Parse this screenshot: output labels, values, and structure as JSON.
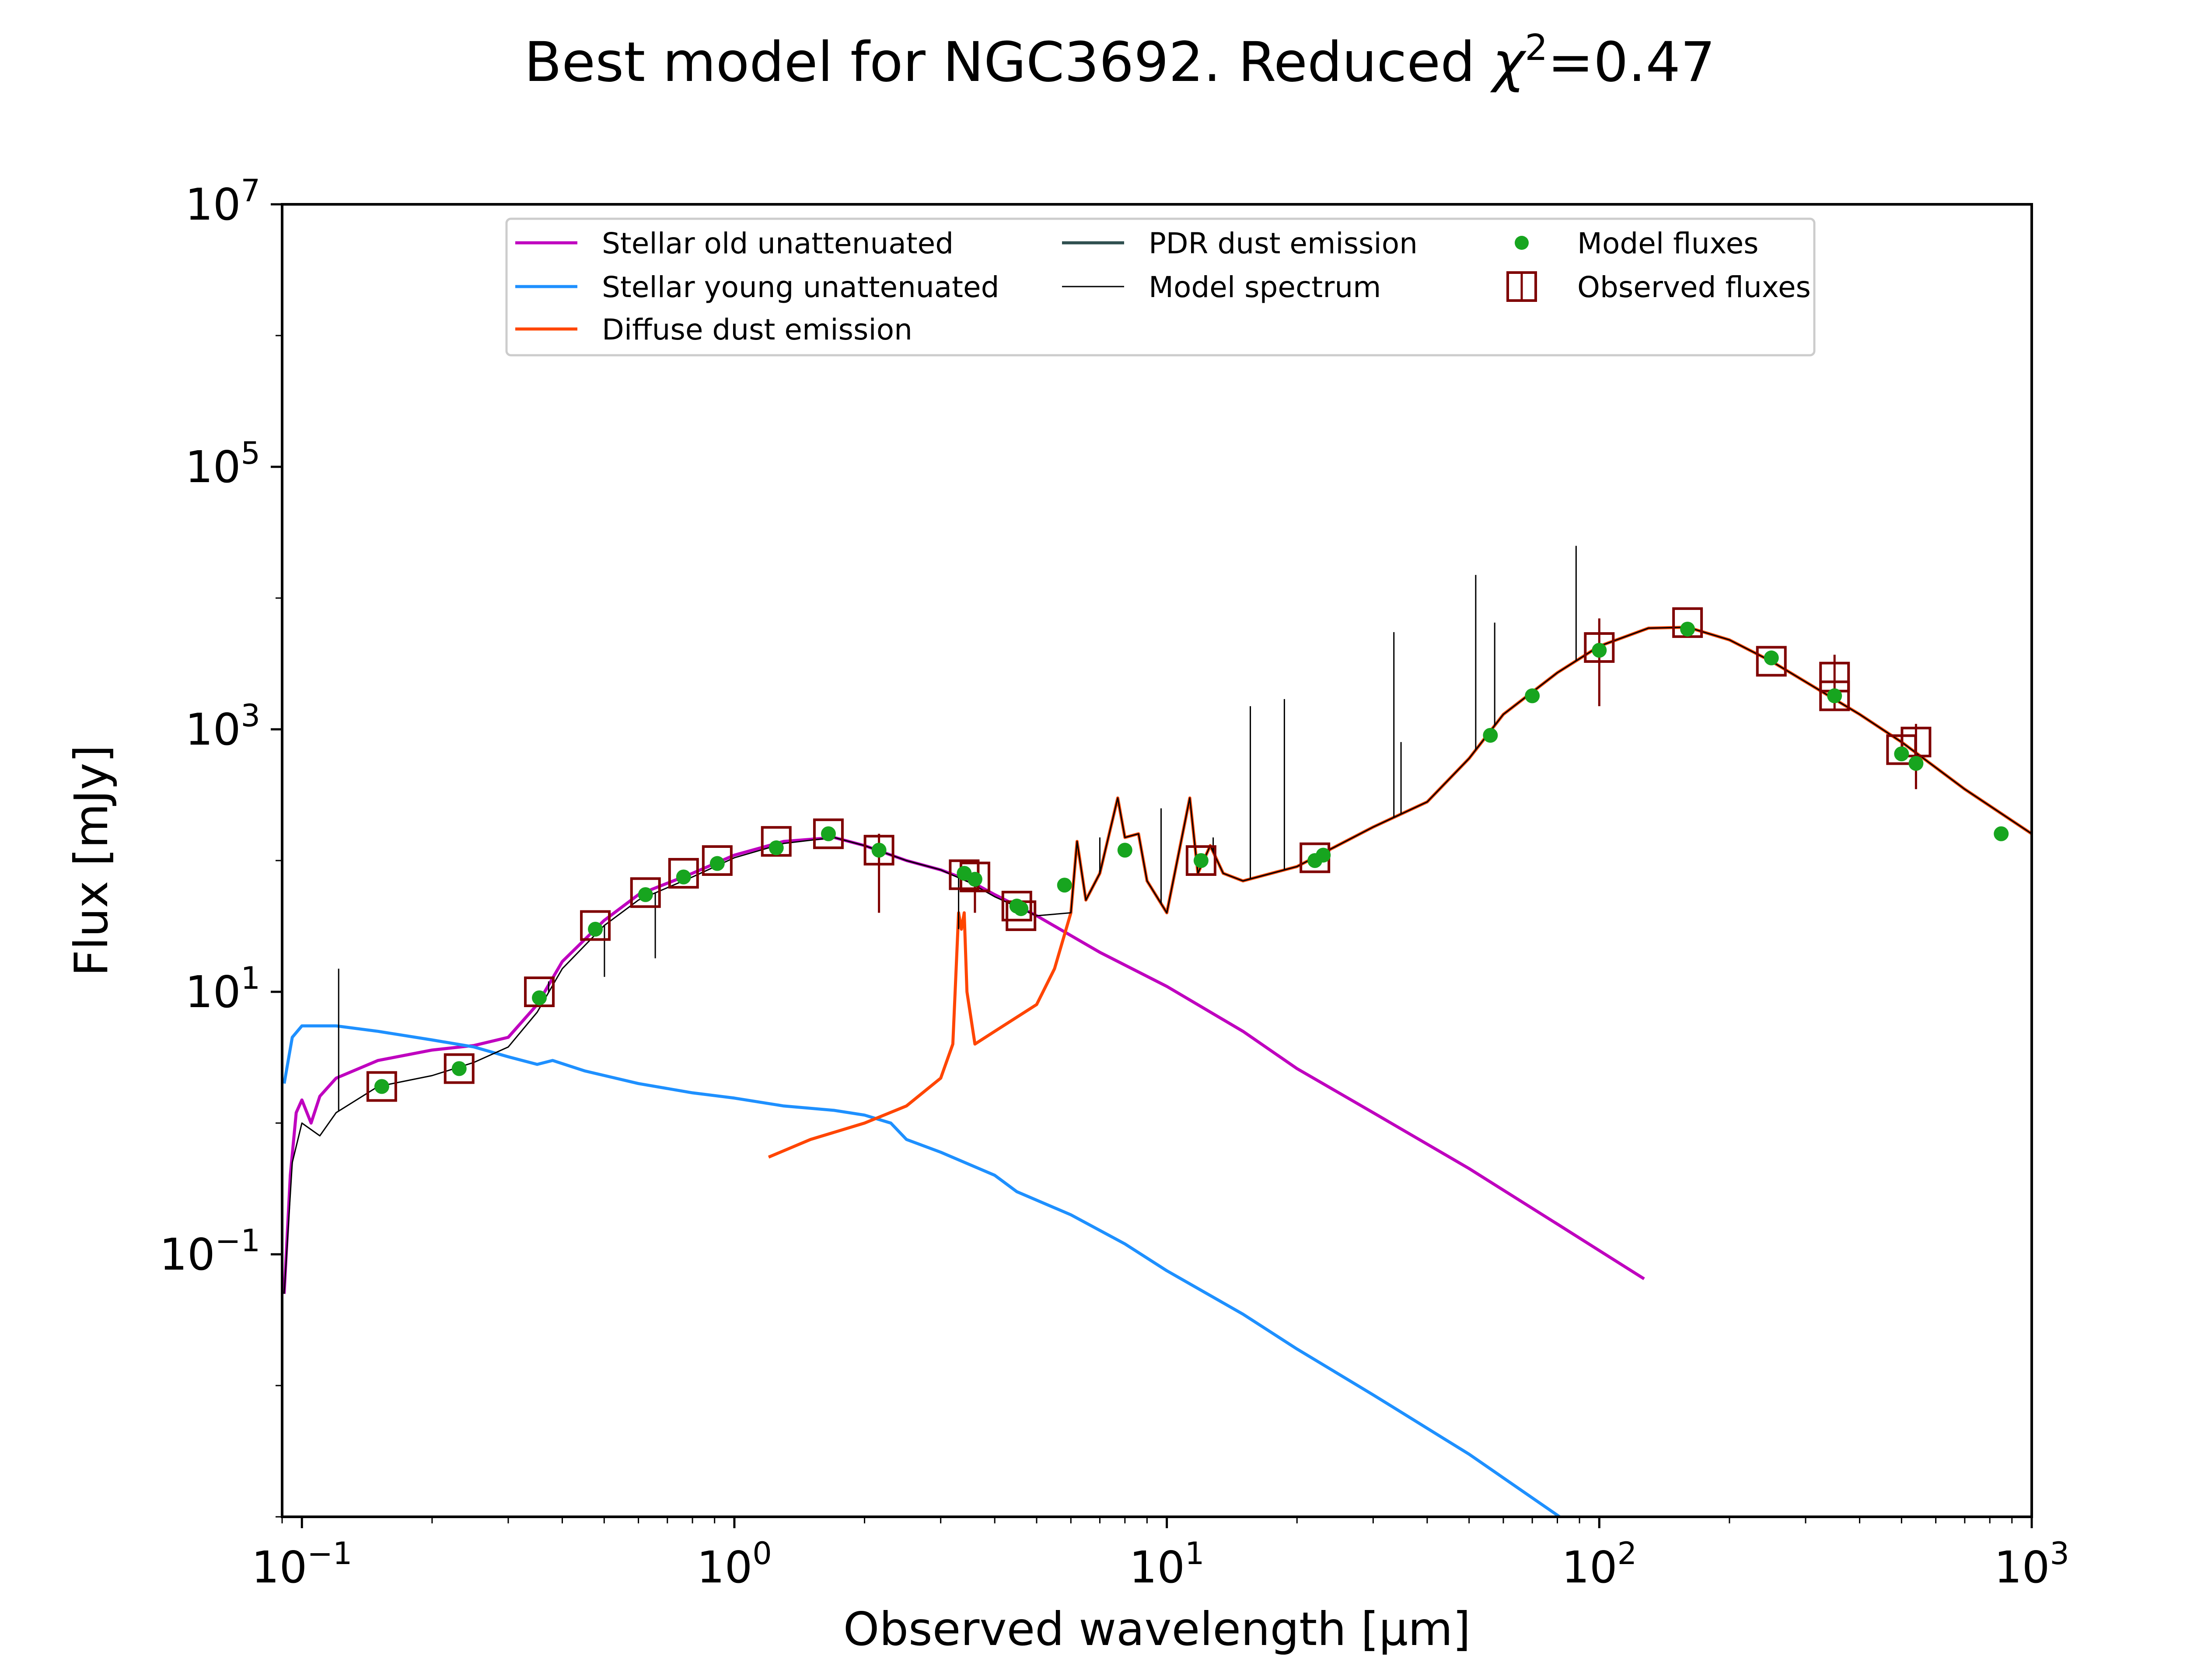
{
  "chart_data": {
    "type": "line",
    "title": {
      "main": "Best model for NGC3692. Reduced ",
      "chi": "χ",
      "exp": "2",
      "tail": "=0.47"
    },
    "xlabel": "Observed wavelength [μm]",
    "ylabel": "Flux [mJy]",
    "x_scale": "log",
    "y_scale": "log",
    "xlim": [
      0.09,
      1000
    ],
    "ylim": [
      0.001,
      10000000
    ],
    "x_ticks": [
      {
        "v": 0.1,
        "base": "10",
        "exp": "−1"
      },
      {
        "v": 1,
        "base": "10",
        "exp": "0"
      },
      {
        "v": 10,
        "base": "10",
        "exp": "1"
      },
      {
        "v": 100,
        "base": "10",
        "exp": "2"
      },
      {
        "v": 1000,
        "base": "10",
        "exp": "3"
      }
    ],
    "y_ticks": [
      {
        "v": 0.1,
        "base": "10",
        "exp": "−1"
      },
      {
        "v": 10,
        "base": "10",
        "exp": "1"
      },
      {
        "v": 1000,
        "base": "10",
        "exp": "3"
      },
      {
        "v": 100000,
        "base": "10",
        "exp": "5"
      },
      {
        "v": 10000000,
        "base": "10",
        "exp": "7"
      }
    ],
    "grid": false,
    "legend": {
      "placement": "upper center",
      "entries": [
        {
          "label": "Stellar old unattenuated",
          "kind": "line",
          "color": "#BF00BF"
        },
        {
          "label": "Stellar young unattenuated",
          "kind": "line",
          "color": "#1E90FF"
        },
        {
          "label": "Diffuse dust emission",
          "kind": "line",
          "color": "#FF4500"
        },
        {
          "label": "PDR dust emission",
          "kind": "line",
          "color": "#2F4F4F"
        },
        {
          "label": "Model spectrum",
          "kind": "thin",
          "color": "#000000"
        },
        {
          "label": "Model fluxes",
          "kind": "dot",
          "color": "#17A51F"
        },
        {
          "label": "Observed fluxes",
          "kind": "square",
          "color": "#7F0000"
        }
      ]
    },
    "series": [
      {
        "name": "Stellar old unattenuated",
        "color": "#BF00BF",
        "points": [
          [
            0.091,
            0.05
          ],
          [
            0.094,
            0.4
          ],
          [
            0.097,
            1.2
          ],
          [
            0.1,
            1.5
          ],
          [
            0.105,
            1.0
          ],
          [
            0.11,
            1.6
          ],
          [
            0.12,
            2.2
          ],
          [
            0.15,
            3.0
          ],
          [
            0.2,
            3.6
          ],
          [
            0.25,
            3.9
          ],
          [
            0.3,
            4.5
          ],
          [
            0.35,
            8
          ],
          [
            0.4,
            17
          ],
          [
            0.5,
            35
          ],
          [
            0.6,
            55
          ],
          [
            0.8,
            80
          ],
          [
            1.0,
            110
          ],
          [
            1.3,
            140
          ],
          [
            1.7,
            150
          ],
          [
            2.0,
            130
          ],
          [
            2.5,
            100
          ],
          [
            3.0,
            85
          ],
          [
            3.5,
            70
          ],
          [
            4.0,
            55
          ],
          [
            5.0,
            38
          ],
          [
            7.0,
            20
          ],
          [
            10.0,
            11
          ],
          [
            15.0,
            5.0
          ],
          [
            20.0,
            2.6
          ],
          [
            30.0,
            1.2
          ],
          [
            50.0,
            0.45
          ],
          [
            80.0,
            0.17
          ],
          [
            127.0,
            0.065
          ]
        ]
      },
      {
        "name": "Stellar young unattenuated",
        "color": "#1E90FF",
        "points": [
          [
            0.091,
            2
          ],
          [
            0.095,
            4.5
          ],
          [
            0.1,
            5.5
          ],
          [
            0.12,
            5.5
          ],
          [
            0.15,
            5.0
          ],
          [
            0.2,
            4.3
          ],
          [
            0.25,
            3.8
          ],
          [
            0.3,
            3.2
          ],
          [
            0.35,
            2.8
          ],
          [
            0.38,
            3.0
          ],
          [
            0.45,
            2.5
          ],
          [
            0.6,
            2.0
          ],
          [
            0.8,
            1.7
          ],
          [
            1.0,
            1.55
          ],
          [
            1.3,
            1.35
          ],
          [
            1.7,
            1.25
          ],
          [
            2.0,
            1.15
          ],
          [
            2.3,
            1.0
          ],
          [
            2.5,
            0.75
          ],
          [
            3.0,
            0.6
          ],
          [
            4.0,
            0.4
          ],
          [
            4.5,
            0.3
          ],
          [
            6.0,
            0.2
          ],
          [
            8.0,
            0.12
          ],
          [
            10.0,
            0.075
          ],
          [
            15.0,
            0.035
          ],
          [
            20.0,
            0.019
          ],
          [
            30.0,
            0.0085
          ],
          [
            50.0,
            0.003
          ],
          [
            81.0,
            0.001
          ]
        ]
      },
      {
        "name": "Diffuse dust emission",
        "color": "#FF4500",
        "points": [
          [
            1.2,
            0.55
          ],
          [
            1.5,
            0.75
          ],
          [
            2.0,
            1.0
          ],
          [
            2.5,
            1.35
          ],
          [
            3.0,
            2.2
          ],
          [
            3.2,
            4
          ],
          [
            3.3,
            40
          ],
          [
            3.35,
            30
          ],
          [
            3.4,
            40
          ],
          [
            3.45,
            10
          ],
          [
            3.6,
            4
          ],
          [
            4.0,
            5
          ],
          [
            5.0,
            8
          ],
          [
            5.5,
            15
          ],
          [
            6.0,
            40
          ],
          [
            6.2,
            140
          ],
          [
            6.5,
            50
          ],
          [
            7.0,
            80
          ],
          [
            7.7,
            300
          ],
          [
            8.0,
            150
          ],
          [
            8.6,
            160
          ],
          [
            9.0,
            70
          ],
          [
            10.0,
            40
          ],
          [
            11.3,
            300
          ],
          [
            11.8,
            80
          ],
          [
            12.6,
            130
          ],
          [
            13.5,
            80
          ],
          [
            15.0,
            70
          ],
          [
            20.0,
            90
          ],
          [
            30.0,
            180
          ],
          [
            40.0,
            280
          ],
          [
            50.0,
            600
          ],
          [
            60.0,
            1300
          ],
          [
            80.0,
            2700
          ],
          [
            100.0,
            4300
          ],
          [
            130.0,
            5900
          ],
          [
            160.0,
            6000
          ],
          [
            200.0,
            4800
          ],
          [
            250.0,
            3300
          ],
          [
            300.0,
            2300
          ],
          [
            400.0,
            1300
          ],
          [
            500.0,
            800
          ],
          [
            700.0,
            350
          ],
          [
            1000.0,
            160
          ]
        ]
      },
      {
        "name": "Model spectrum",
        "color": "#000000",
        "points": [
          [
            0.091,
            0.05
          ],
          [
            0.095,
            0.5
          ],
          [
            0.1,
            1.0
          ],
          [
            0.11,
            0.8
          ],
          [
            0.12,
            1.2
          ],
          [
            0.15,
            1.9
          ],
          [
            0.2,
            2.3
          ],
          [
            0.25,
            2.9
          ],
          [
            0.3,
            3.8
          ],
          [
            0.35,
            7
          ],
          [
            0.4,
            15
          ],
          [
            0.5,
            32
          ],
          [
            0.6,
            50
          ],
          [
            0.8,
            75
          ],
          [
            1.0,
            105
          ],
          [
            1.3,
            135
          ],
          [
            1.7,
            150
          ],
          [
            2.0,
            130
          ],
          [
            2.5,
            100
          ],
          [
            3.0,
            85
          ],
          [
            3.5,
            68
          ],
          [
            4.0,
            53
          ],
          [
            5.0,
            38
          ],
          [
            6.0,
            40
          ],
          [
            6.2,
            140
          ],
          [
            6.5,
            50
          ],
          [
            7.0,
            80
          ],
          [
            7.7,
            300
          ],
          [
            8.0,
            150
          ],
          [
            8.6,
            160
          ],
          [
            9.0,
            70
          ],
          [
            10.0,
            40
          ],
          [
            11.3,
            300
          ],
          [
            11.8,
            80
          ],
          [
            12.6,
            130
          ],
          [
            13.5,
            80
          ],
          [
            15.0,
            70
          ],
          [
            20.0,
            90
          ],
          [
            30.0,
            180
          ],
          [
            40.0,
            280
          ],
          [
            50.0,
            600
          ],
          [
            60.0,
            1300
          ],
          [
            80.0,
            2700
          ],
          [
            100.0,
            4300
          ],
          [
            130.0,
            5900
          ],
          [
            160.0,
            6000
          ],
          [
            200.0,
            4800
          ],
          [
            250.0,
            3300
          ],
          [
            300.0,
            2300
          ],
          [
            400.0,
            1300
          ],
          [
            500.0,
            800
          ],
          [
            700.0,
            350
          ],
          [
            1000.0,
            160
          ]
        ]
      }
    ],
    "emission_lines": [
      [
        0.1216,
        15
      ],
      [
        0.372,
        12
      ],
      [
        0.5007,
        13
      ],
      [
        0.6563,
        18
      ],
      [
        3.3,
        30
      ],
      [
        7.0,
        150
      ],
      [
        9.7,
        250
      ],
      [
        12.8,
        150
      ],
      [
        15.6,
        1500
      ],
      [
        18.7,
        1700
      ],
      [
        33.5,
        5500
      ],
      [
        34.8,
        800
      ],
      [
        51.8,
        15000
      ],
      [
        57.3,
        6500
      ],
      [
        88.4,
        25000
      ]
    ],
    "model_fluxes": [
      [
        0.153,
        1.9
      ],
      [
        0.231,
        2.6
      ],
      [
        0.354,
        9
      ],
      [
        0.477,
        30
      ],
      [
        0.623,
        55
      ],
      [
        0.763,
        75
      ],
      [
        0.913,
        95
      ],
      [
        1.25,
        125
      ],
      [
        1.65,
        160
      ],
      [
        2.16,
        120
      ],
      [
        3.4,
        80
      ],
      [
        3.6,
        72
      ],
      [
        4.5,
        45
      ],
      [
        4.6,
        43
      ],
      [
        5.8,
        65
      ],
      [
        8.0,
        120
      ],
      [
        12.0,
        100
      ],
      [
        22.0,
        100
      ],
      [
        23.0,
        110
      ],
      [
        56.0,
        900
      ],
      [
        70.0,
        1800
      ],
      [
        100.0,
        4000
      ],
      [
        160.0,
        5800
      ],
      [
        250.0,
        3500
      ],
      [
        350.0,
        1800
      ],
      [
        500.0,
        650
      ],
      [
        540.0,
        550
      ],
      [
        850.0,
        160
      ]
    ],
    "observed_fluxes": [
      {
        "x": 0.153,
        "y": 1.9,
        "lo": 1.9,
        "hi": 1.9
      },
      {
        "x": 0.231,
        "y": 2.6,
        "lo": 2.6,
        "hi": 2.6
      },
      {
        "x": 0.354,
        "y": 10,
        "lo": 10,
        "hi": 10
      },
      {
        "x": 0.477,
        "y": 32,
        "lo": 32,
        "hi": 32
      },
      {
        "x": 0.623,
        "y": 57,
        "lo": 57,
        "hi": 57
      },
      {
        "x": 0.763,
        "y": 80,
        "lo": 80,
        "hi": 80
      },
      {
        "x": 0.913,
        "y": 100,
        "lo": 100,
        "hi": 100
      },
      {
        "x": 1.25,
        "y": 140,
        "lo": 140,
        "hi": 140
      },
      {
        "x": 1.65,
        "y": 160,
        "lo": 160,
        "hi": 160
      },
      {
        "x": 2.16,
        "y": 120,
        "lo": 40,
        "hi": 160
      },
      {
        "x": 3.4,
        "y": 78,
        "lo": 78,
        "hi": 78
      },
      {
        "x": 3.6,
        "y": 75,
        "lo": 40,
        "hi": 80
      },
      {
        "x": 4.5,
        "y": 45,
        "lo": 45,
        "hi": 45
      },
      {
        "x": 4.6,
        "y": 38,
        "lo": 38,
        "hi": 38
      },
      {
        "x": 12.0,
        "y": 100,
        "lo": 100,
        "hi": 100
      },
      {
        "x": 22.0,
        "y": 105,
        "lo": 105,
        "hi": 105
      },
      {
        "x": 100.0,
        "y": 4200,
        "lo": 1500,
        "hi": 7000
      },
      {
        "x": 160.0,
        "y": 6500,
        "lo": 6500,
        "hi": 6500
      },
      {
        "x": 250.0,
        "y": 3300,
        "lo": 3300,
        "hi": 3300
      },
      {
        "x": 350.0,
        "y": 2500,
        "lo": 1400,
        "hi": 3700
      },
      {
        "x": 350.0,
        "y": 1800,
        "lo": 1800,
        "hi": 1800
      },
      {
        "x": 500.0,
        "y": 700,
        "lo": 700,
        "hi": 700
      },
      {
        "x": 540.0,
        "y": 800,
        "lo": 350,
        "hi": 1100
      }
    ]
  }
}
